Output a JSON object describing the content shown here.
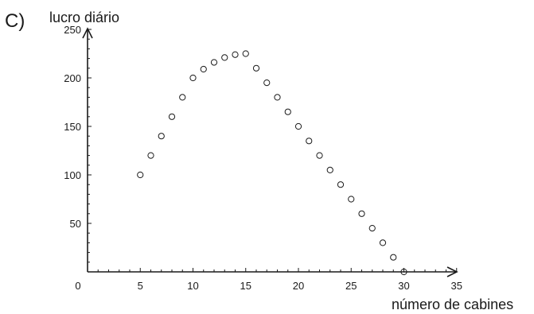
{
  "panel_label": "C)",
  "chart_data": {
    "type": "scatter",
    "title": "",
    "xlabel": "número de cabines",
    "ylabel": "lucro diário",
    "xlim": [
      0,
      35
    ],
    "ylim": [
      0,
      250
    ],
    "x_ticks": [
      0,
      5,
      10,
      15,
      20,
      25,
      30,
      35
    ],
    "y_ticks": [
      50,
      100,
      150,
      200,
      250
    ],
    "grid": false,
    "legend": "none",
    "marker": "open-circle",
    "color": "#1a1a1a",
    "series": [
      {
        "x": [
          5,
          6,
          7,
          8,
          9,
          10,
          11,
          12,
          13,
          14,
          15,
          16,
          17,
          18,
          19,
          20,
          21,
          22,
          23,
          24,
          25,
          26,
          27,
          28,
          29,
          30
        ],
        "y": [
          100,
          120,
          140,
          160,
          180,
          200,
          209,
          216,
          221,
          224,
          225,
          210,
          195,
          180,
          165,
          150,
          135,
          120,
          105,
          90,
          75,
          60,
          45,
          30,
          15,
          0
        ]
      }
    ]
  }
}
